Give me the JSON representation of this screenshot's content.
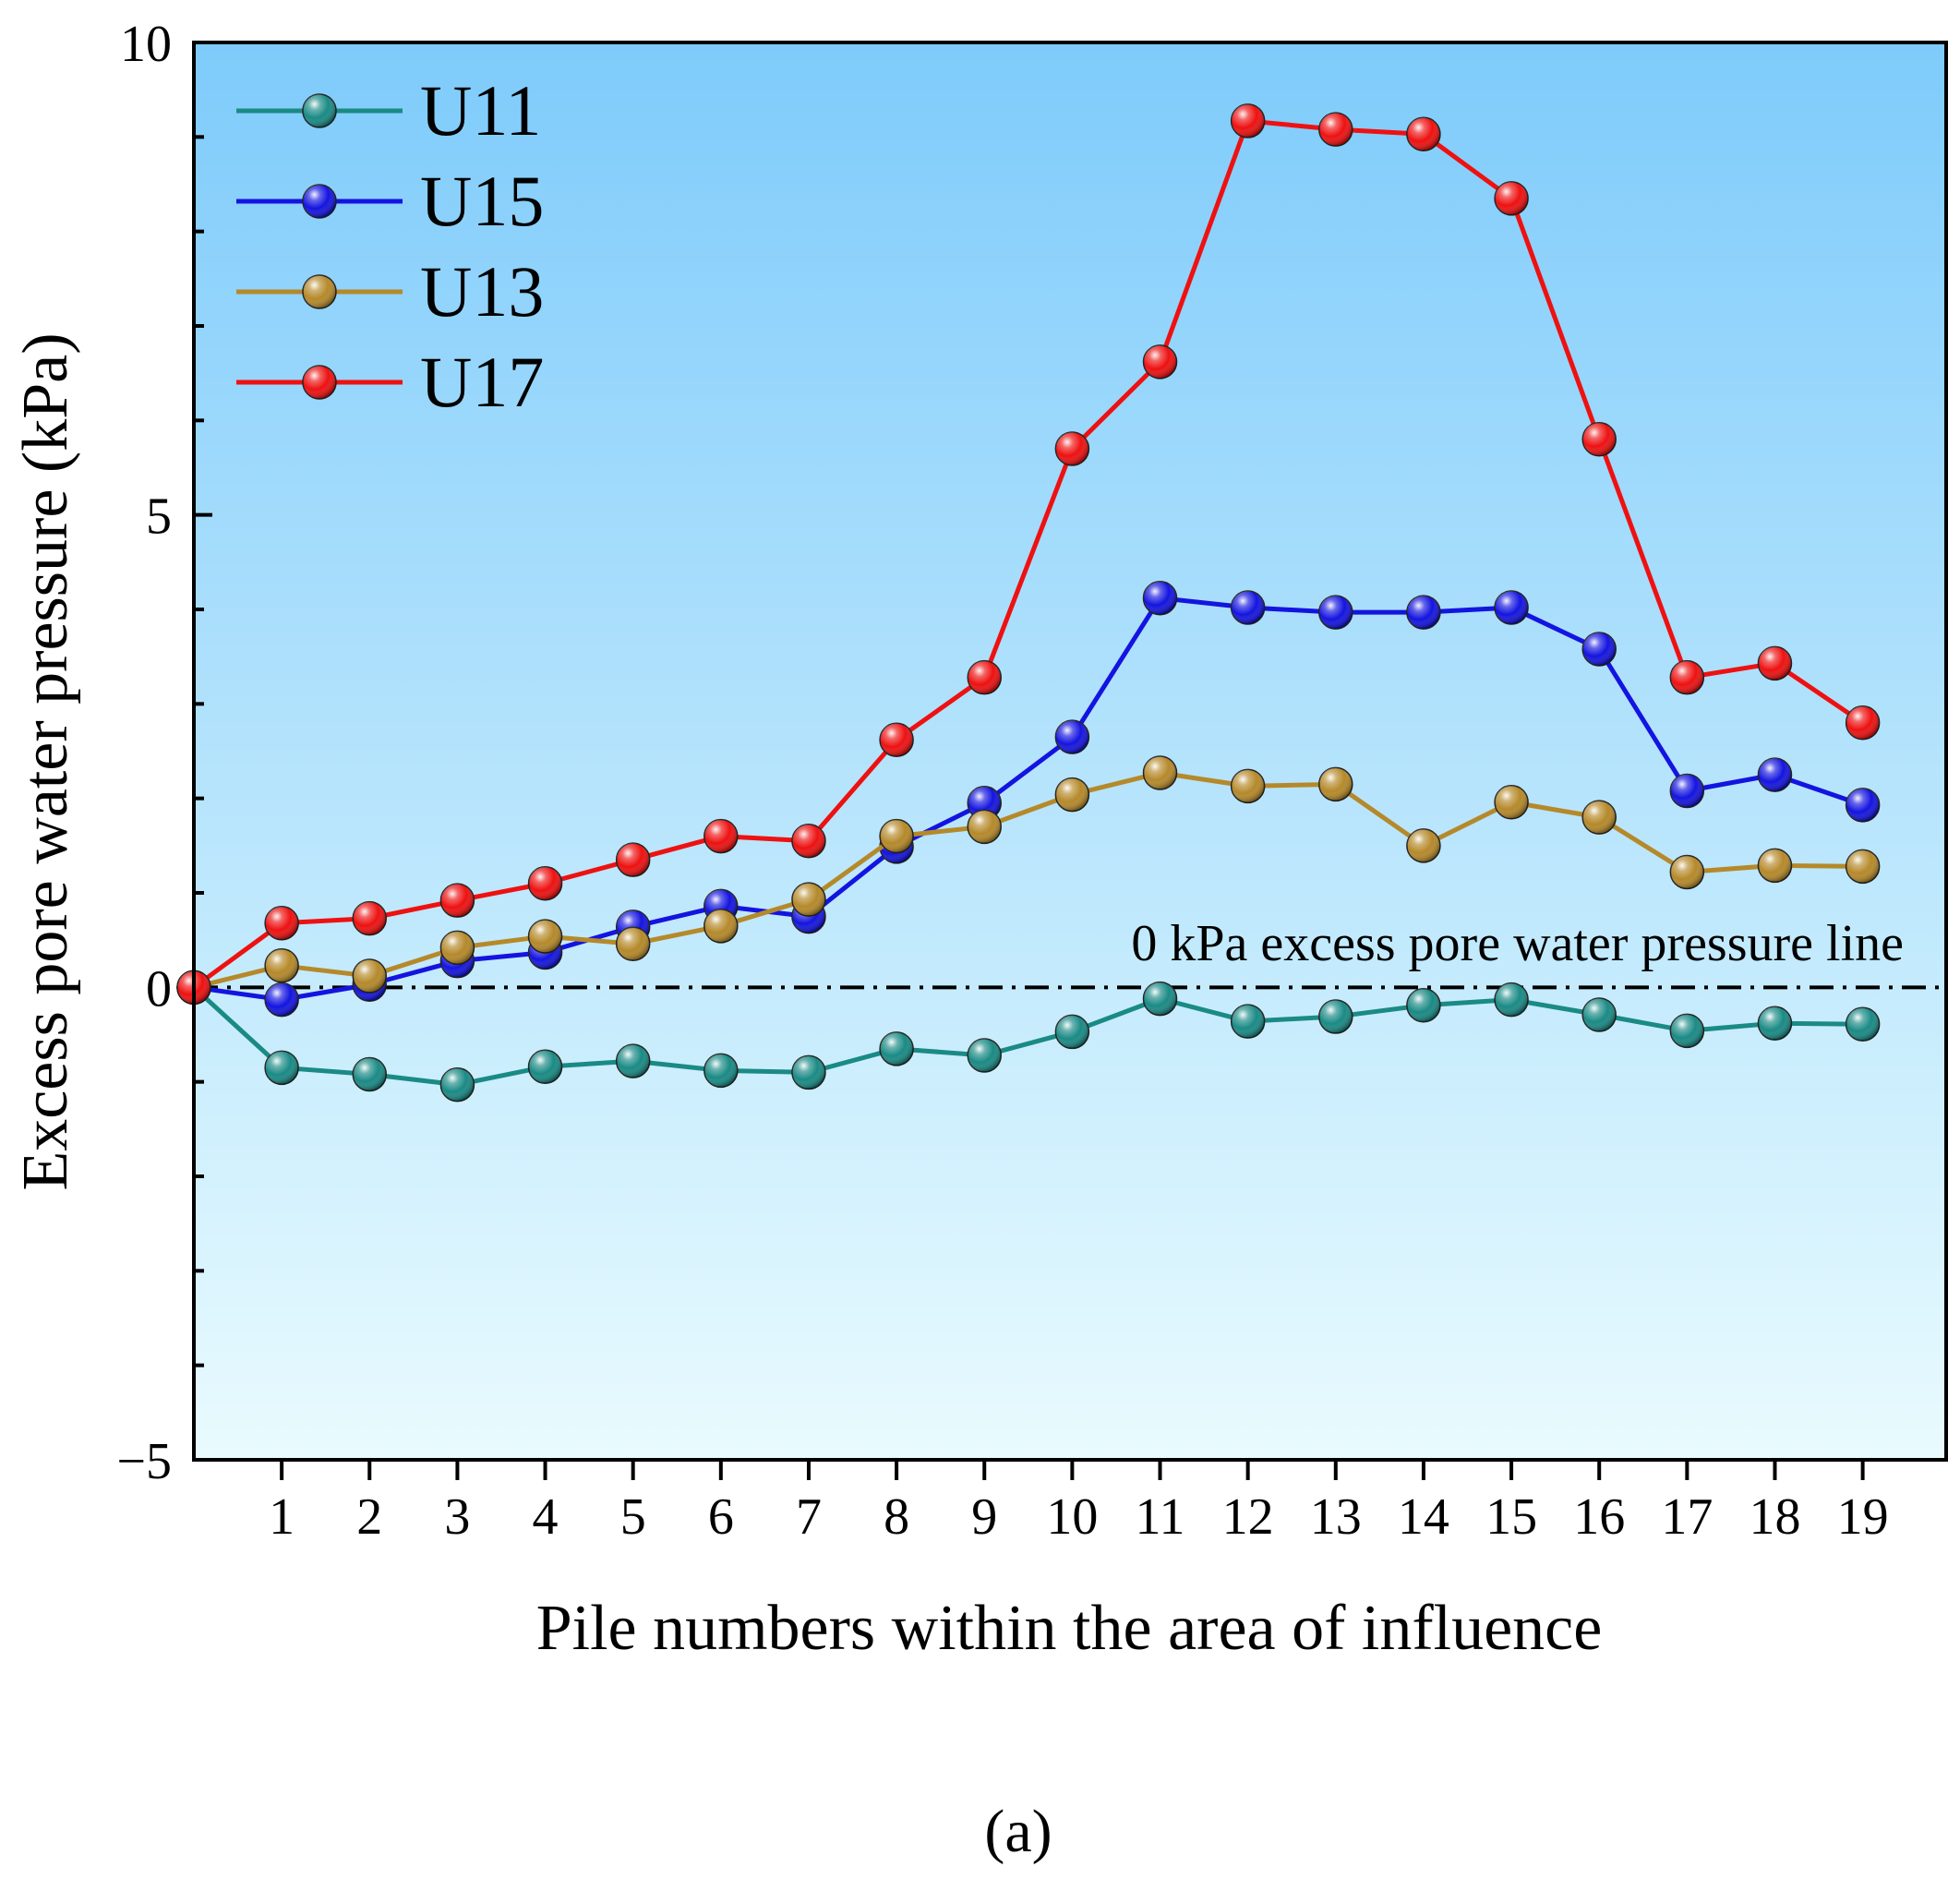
{
  "chart_data": {
    "type": "line",
    "xlabel": "Pile numbers within the area of influence",
    "ylabel": "Excess pore water pressure (kPa)",
    "xlim": [
      0,
      19.95
    ],
    "ylim": [
      -5,
      10
    ],
    "x_ticks": [
      1,
      2,
      3,
      4,
      5,
      6,
      7,
      8,
      9,
      10,
      11,
      12,
      13,
      14,
      15,
      16,
      17,
      18,
      19
    ],
    "y_ticks": [
      -5,
      0,
      5,
      10
    ],
    "reference_line": {
      "y": 0,
      "label": "0 kPa excess pore water pressure line"
    },
    "legend_position": "top-left",
    "background_gradient": [
      "#7ecbfb",
      "#e9fbfe"
    ],
    "x": [
      0,
      1,
      2,
      3,
      4,
      5,
      6,
      7,
      8,
      9,
      10,
      11,
      12,
      13,
      14,
      15,
      16,
      17,
      18,
      19
    ],
    "series": [
      {
        "name": "U11",
        "color": "#1a8a85",
        "values": [
          0,
          -0.85,
          -0.92,
          -1.03,
          -0.84,
          -0.78,
          -0.88,
          -0.9,
          -0.65,
          -0.72,
          -0.47,
          -0.12,
          -0.36,
          -0.31,
          -0.19,
          -0.13,
          -0.29,
          -0.46,
          -0.38,
          -0.39
        ]
      },
      {
        "name": "U15",
        "color": "#1414e0",
        "values": [
          0,
          -0.13,
          0.03,
          0.28,
          0.37,
          0.64,
          0.86,
          0.75,
          1.49,
          1.95,
          2.65,
          4.12,
          4.02,
          3.97,
          3.97,
          4.02,
          3.58,
          2.08,
          2.25,
          1.93
        ]
      },
      {
        "name": "U13",
        "color": "#b5892a",
        "values": [
          0,
          0.23,
          0.12,
          0.42,
          0.54,
          0.46,
          0.65,
          0.93,
          1.6,
          1.7,
          2.04,
          2.27,
          2.13,
          2.15,
          1.5,
          1.96,
          1.8,
          1.22,
          1.29,
          1.28
        ]
      },
      {
        "name": "U17",
        "color": "#ee1111",
        "values": [
          0,
          0.68,
          0.73,
          0.92,
          1.1,
          1.35,
          1.6,
          1.55,
          2.62,
          3.28,
          5.7,
          6.62,
          9.17,
          9.08,
          9.03,
          8.35,
          5.8,
          3.28,
          3.43,
          2.8
        ]
      }
    ]
  },
  "caption": "(a)"
}
